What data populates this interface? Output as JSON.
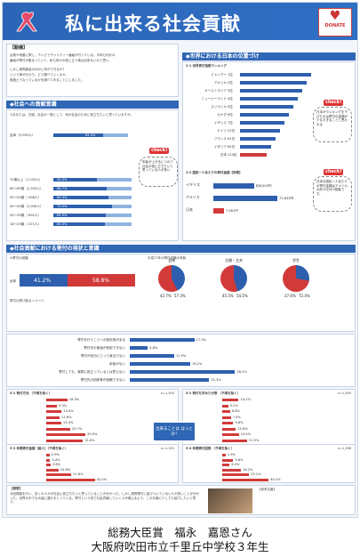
{
  "poster": {
    "title": "私に出来る社会貢献",
    "donate_label": "DONATE",
    "motive": {
      "heading": "【動機】",
      "lines": [
        "台風や地震に際し、テレビでチャリティー番組が行っている。今年も何かの",
        "番組が寄付が集まっていて、私も何かの役に立つ事は出来ないかと思い、",
        "しかし実際募金のほかに何ができるか？",
        "という事が分かり、どう調べていくのか、",
        "実施どうなっているかを調べてみることにしました。"
      ]
    },
    "left_col": {
      "section1": "◆社会への貢献意識",
      "q1": "①あなたは、日頃、社会の一員として、何か社会のために役立ちたいと思っていますか。",
      "total_label": "全体（5,993人）",
      "total_pct": "65.4%",
      "age_rows": [
        {
          "label": "70歳以上（1,533人）",
          "val": "54.3%"
        },
        {
          "label": "60～69歳（1,333人）",
          "val": "66.7%"
        },
        {
          "label": "50～59歳（ 908人）",
          "val": "69.4%"
        },
        {
          "label": "40～49歳（1,056人）",
          "val": "73.0%"
        },
        {
          "label": "30～39歳（ 692人）",
          "val": "65.9%"
        },
        {
          "label": "18～29歳（ 471人）",
          "val": "63.9%"
        }
      ],
      "check_label": "check!",
      "check_note": "年齢が上がるにつれて社会の役に立ちたいと思っている人が多い",
      "section2": "◆社会貢献における寄付の現状と意識",
      "q2": "②寄付の経験",
      "overall_left": "41.2%",
      "overall_right": "58.8%",
      "overall_label": "全体",
      "q3": "平成27年の寄付経験の有無",
      "pies": [
        {
          "label": "全体",
          "a": "42.7%",
          "b": "57.3%"
        },
        {
          "label": "主婦・主夫",
          "a": "45.5%",
          "b": "54.5%"
        },
        {
          "label": "学生",
          "a": "27.6%",
          "b": "72.4%"
        }
      ],
      "q4": "寄付の受け取るイメージ",
      "reason_rows": [
        {
          "label": "寄付を行うことへの抵抗感がある",
          "val": "17.3%"
        },
        {
          "label": "寄付先の使途が信用できない",
          "val": "4.8%"
        },
        {
          "label": "寄付が自分にとって身近でない",
          "val": "11.9%"
        },
        {
          "label": "余裕がない",
          "val": "16.2%"
        },
        {
          "label": "寄付しても、実際に役立っているとは思えない",
          "val": "28.2%"
        },
        {
          "label": "寄付先の団体等が信頼できない",
          "val": "21.3%"
        }
      ]
    },
    "right_col": {
      "section1": "◆世界における日本の位置づけ",
      "q1": "2-1 世界寄付指数ランキング",
      "countries": [
        {
          "name": "ミャンマー",
          "rank": "1位"
        },
        {
          "name": "アメリカ",
          "rank": "2位"
        },
        {
          "name": "オーストラリア",
          "rank": "3位"
        },
        {
          "name": "ニュージーランド",
          "rank": "4位"
        },
        {
          "name": "スリランカ",
          "rank": "5位"
        },
        {
          "name": "カナダ",
          "rank": "6位"
        },
        {
          "name": "イギリス",
          "rank": "7位"
        },
        {
          "name": "ドイツ",
          "rank": "21位"
        },
        {
          "name": "フランス",
          "rank": "81位"
        },
        {
          "name": "イタリア",
          "rank": "82位"
        },
        {
          "name": "日本",
          "rank": "114位"
        }
      ],
      "q2": "2-2 国民一人あたりの寄付金額【年間】",
      "gift_rows": [
        {
          "name": "イギリス",
          "amount": "約8,000円"
        },
        {
          "name": "アメリカ",
          "amount": "72,633円"
        },
        {
          "name": "日本",
          "amount": "7,981円"
        }
      ],
      "check_label": "check!",
      "check_note1": "日本がランキングを下げたのは寄付の金額が少なすぎることと思われる",
      "check_note2": "日本の国民一人あたりの寄付金額はアメリカの約10分の1程度です。"
    },
    "bottom": {
      "s1": "5-1 寄付方法 （不明を除く）",
      "s1_n": "n=1,505",
      "s1_rows": [
        "18.3%",
        "9.3%",
        "13.4%",
        "11.6%",
        "13.0%",
        "20.7%",
        "33.9%",
        "31.8%",
        "20.0%"
      ],
      "s2": "5-2 寄付を求めた分野 （不明を除く）",
      "s2_n": "n=1,495",
      "s2_rows": [
        "14.2%",
        "5.2%",
        "6.8%",
        "7.4%",
        "9.6%",
        "11.8%",
        "14.4%",
        "21.5%",
        "63.7%"
      ],
      "s3": "5-3 年間寄付金額［総人］（不明を除く）",
      "s3_n": "n=1,325",
      "s3_rows": [
        "2.9%",
        "3.4%",
        "3.8%",
        "10.6%",
        "21.6%",
        "42.0%"
      ],
      "s4": "5-4 年間寄付回数 （不明を除く）",
      "s4_n": "n=1,286",
      "s4_rows": [
        "2.9%",
        "9.6%",
        "6.4%",
        "16.2%",
        "23.1%",
        "40.2%"
      ],
      "badge": "出来ることは ほっとD!!",
      "conclusion_head": "【感想】",
      "conclusion": "今回調査を行い、多くの人々が社会に役立ちたいと思っていることが分かった。しかし実際寄付に結びついていない人が多いことが分かった。世界の中でも大幅に遅れをとっている。寄付という形で社会貢献していく人が増えるよう、これを機に少しでも協力したいと思う。",
      "ref": "【参考文献】"
    }
  },
  "caption": {
    "line1": "総務大臣賞　福永　嘉恩さん",
    "line2": "大阪府吹田市立千里丘中学校３年生"
  }
}
